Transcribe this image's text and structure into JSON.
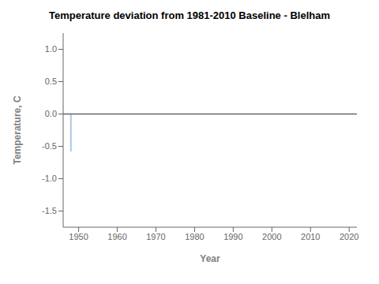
{
  "chart_data": {
    "type": "bar",
    "title": "Temperature deviation from 1981-2010 Baseline - Blelham",
    "x_label": "Year",
    "y_label": "Temperature, C",
    "x": [
      1948
    ],
    "values": [
      -0.58
    ],
    "color": "#aac8e8",
    "xlim": [
      1946,
      2022
    ],
    "ylim": [
      -1.75,
      1.25
    ],
    "xticks": [
      1950,
      1960,
      1970,
      1980,
      1990,
      2000,
      2010,
      2020
    ],
    "yticks": [
      -1.5,
      {
        "value": -1.0,
        "label": "-1.0"
      },
      -0.5,
      {
        "value": 0.0,
        "label": "0.0"
      },
      0.5,
      {
        "value": 1.0,
        "label": "1.0"
      }
    ],
    "baseline": {
      "y": 0.0,
      "color": "#666666"
    },
    "grid": false
  }
}
